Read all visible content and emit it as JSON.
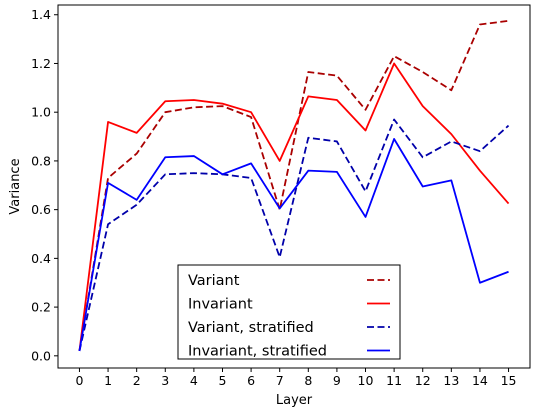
{
  "chart_data": {
    "type": "line",
    "xlabel": "Layer",
    "ylabel": "Variance",
    "x": [
      0,
      1,
      2,
      3,
      4,
      5,
      6,
      7,
      8,
      9,
      10,
      11,
      12,
      13,
      14,
      15
    ],
    "xlim": [
      -0.75,
      15.75
    ],
    "ylim": [
      -0.05,
      1.44
    ],
    "xticks": [
      "0",
      "1",
      "2",
      "3",
      "4",
      "5",
      "6",
      "7",
      "8",
      "9",
      "10",
      "11",
      "12",
      "13",
      "14",
      "15"
    ],
    "yticks": [
      "0.0",
      "0.2",
      "0.4",
      "0.6",
      "0.8",
      "1.0",
      "1.2",
      "1.4"
    ],
    "grid": false,
    "legend_placement": "lower-center",
    "series": [
      {
        "name": "Variant",
        "color": "#aa0000",
        "style": "dashed",
        "values": [
          0.02,
          0.73,
          0.83,
          1.0,
          1.02,
          1.025,
          0.98,
          0.6,
          1.165,
          1.15,
          1.01,
          1.23,
          1.165,
          1.09,
          1.36,
          1.375
        ]
      },
      {
        "name": "Invariant",
        "color": "#ff0000",
        "style": "solid",
        "values": [
          0.02,
          0.96,
          0.915,
          1.045,
          1.05,
          1.035,
          1.0,
          0.8,
          1.065,
          1.05,
          0.925,
          1.2,
          1.025,
          0.91,
          0.76,
          0.625
        ]
      },
      {
        "name": "Variant, stratified",
        "color": "#0000aa",
        "style": "dashed",
        "values": [
          0.02,
          0.54,
          0.62,
          0.745,
          0.75,
          0.745,
          0.73,
          0.405,
          0.895,
          0.88,
          0.675,
          0.97,
          0.815,
          0.88,
          0.84,
          0.945
        ]
      },
      {
        "name": "Invariant, stratified",
        "color": "#0000ff",
        "style": "solid",
        "values": [
          0.02,
          0.71,
          0.64,
          0.815,
          0.82,
          0.745,
          0.79,
          0.605,
          0.76,
          0.755,
          0.57,
          0.89,
          0.695,
          0.72,
          0.3,
          0.345
        ]
      }
    ]
  }
}
